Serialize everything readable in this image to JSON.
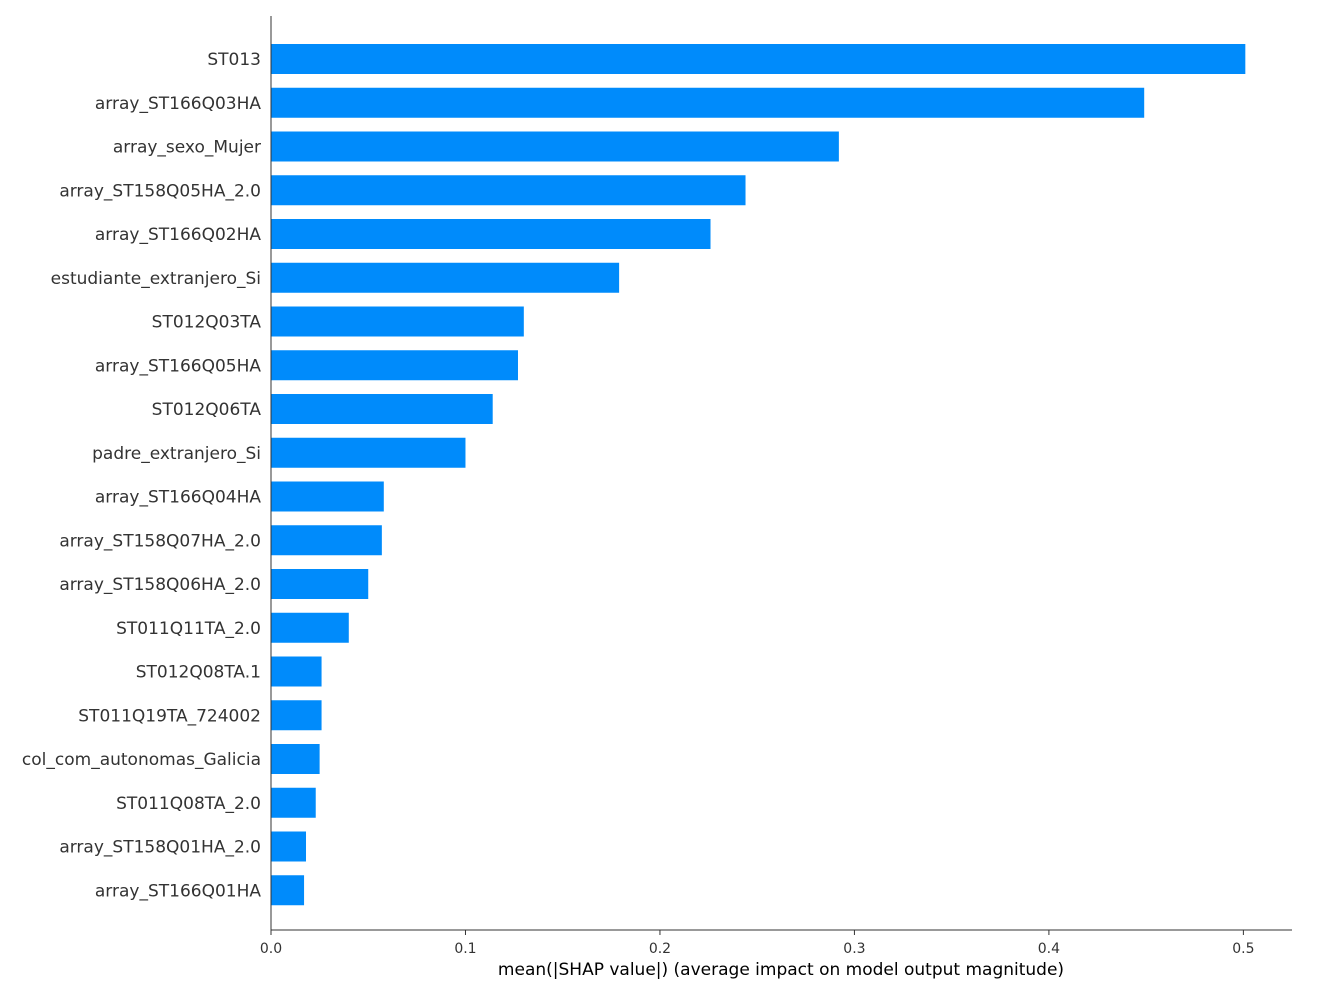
{
  "chart_data": {
    "type": "bar",
    "orientation": "horizontal",
    "categories": [
      "ST013",
      "array_ST166Q03HA",
      "array_sexo_Mujer",
      "array_ST158Q05HA_2.0",
      "array_ST166Q02HA",
      "estudiante_extranjero_Si",
      "ST012Q03TA",
      "array_ST166Q05HA",
      "ST012Q06TA",
      "padre_extranjero_Si",
      "array_ST166Q04HA",
      "array_ST158Q07HA_2.0",
      "array_ST158Q06HA_2.0",
      "ST011Q11TA_2.0",
      "ST012Q08TA.1",
      "ST011Q19TA_724002",
      "col_com_autonomas_Galicia",
      "ST011Q08TA_2.0",
      "array_ST158Q01HA_2.0",
      "array_ST166Q01HA"
    ],
    "values": [
      0.501,
      0.449,
      0.292,
      0.244,
      0.226,
      0.179,
      0.13,
      0.127,
      0.114,
      0.1,
      0.058,
      0.057,
      0.05,
      0.04,
      0.026,
      0.026,
      0.025,
      0.023,
      0.018,
      0.017
    ],
    "xlabel": "mean(|SHAP value|) (average impact on model output magnitude)",
    "ylabel": "",
    "title": "",
    "xlim": [
      0,
      0.525
    ],
    "xticks": [
      0.0,
      0.1,
      0.2,
      0.3,
      0.4,
      0.5
    ],
    "xtick_labels": [
      "0.0",
      "0.1",
      "0.2",
      "0.3",
      "0.4",
      "0.5"
    ],
    "grid": false,
    "legend": "none",
    "colors": {
      "bar": "#008bfb",
      "axis": "#333333",
      "text": "#333333"
    }
  }
}
